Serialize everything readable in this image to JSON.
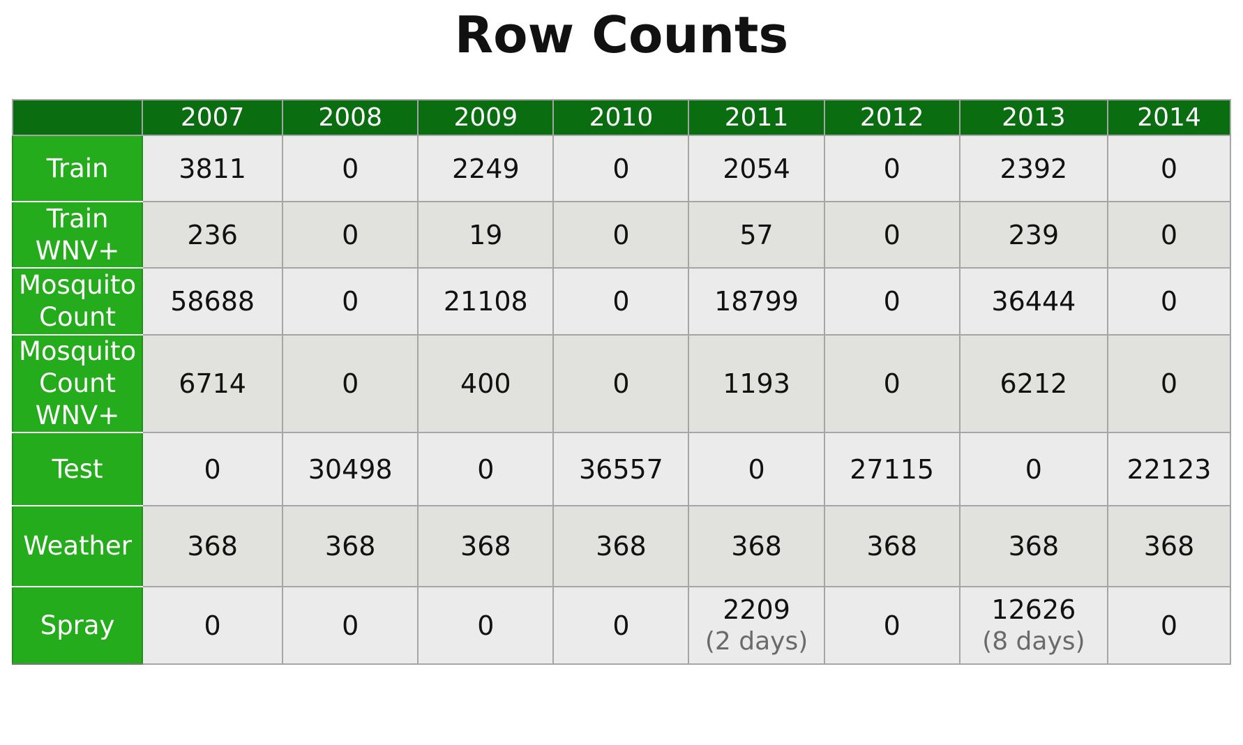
{
  "title": "Row Counts",
  "columns": [
    "2007",
    "2008",
    "2009",
    "2010",
    "2011",
    "2012",
    "2013",
    "2014"
  ],
  "rows": [
    {
      "label": "Train",
      "values": [
        "3811",
        "0",
        "2249",
        "0",
        "2054",
        "0",
        "2392",
        "0"
      ]
    },
    {
      "label": "Train\nWNV+",
      "values": [
        "236",
        "0",
        "19",
        "0",
        "57",
        "0",
        "239",
        "0"
      ]
    },
    {
      "label": "Mosquito\nCount",
      "values": [
        "58688",
        "0",
        "21108",
        "0",
        "18799",
        "0",
        "36444",
        "0"
      ]
    },
    {
      "label": "Mosquito\nCount\nWNV+",
      "values": [
        "6714",
        "0",
        "400",
        "0",
        "1193",
        "0",
        "6212",
        "0"
      ]
    },
    {
      "label": "Test",
      "values": [
        "0",
        "30498",
        "0",
        "36557",
        "0",
        "27115",
        "0",
        "22123"
      ]
    },
    {
      "label": "Weather",
      "values": [
        "368",
        "368",
        "368",
        "368",
        "368",
        "368",
        "368",
        "368"
      ]
    },
    {
      "label": "Spray",
      "values": [
        "0",
        "0",
        "0",
        "0",
        "2209",
        "0",
        "12626",
        "0"
      ],
      "notes": [
        "",
        "",
        "",
        "",
        "(2 days)",
        "",
        "(8 days)",
        ""
      ]
    }
  ],
  "colors": {
    "header_dark_green": "#0a6e10",
    "row_label_green": "#25ac1c",
    "cell_light": "#ebebeb",
    "cell_alt": "#e1e1dd",
    "note_gray": "#6a6a6a"
  }
}
